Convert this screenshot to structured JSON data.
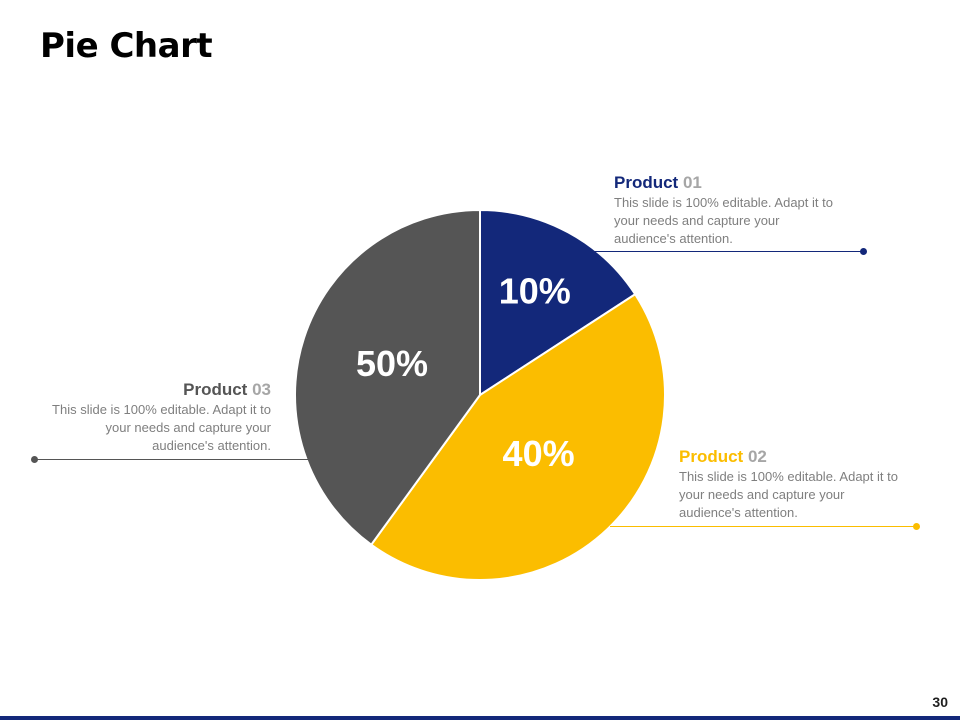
{
  "title": "Pie Chart",
  "page_number": "30",
  "colors": {
    "product01": "#13287a",
    "product02": "#fbbd00",
    "product03": "#555555",
    "body_text": "#7f7f7f",
    "number_text": "#a6a6a6"
  },
  "chart_data": {
    "type": "pie",
    "title": "Pie Chart",
    "series": [
      {
        "name": "Product 01",
        "value": 10,
        "label": "10%",
        "color": "#13287a"
      },
      {
        "name": "Product 02",
        "value": 40,
        "label": "40%",
        "color": "#fbbd00"
      },
      {
        "name": "Product 03",
        "value": 50,
        "label": "50%",
        "color": "#555555"
      }
    ]
  },
  "labels": {
    "p01": {
      "name": "Product",
      "num": "01",
      "desc": "This slide is 100% editable. Adapt it to your needs and capture your audience's attention."
    },
    "p02": {
      "name": "Product",
      "num": "02",
      "desc": "This slide is 100% editable. Adapt it to your needs and capture your audience's attention."
    },
    "p03": {
      "name": "Product",
      "num": "03",
      "desc": "This slide is 100% editable. Adapt it to your needs and capture your audience's attention."
    }
  }
}
